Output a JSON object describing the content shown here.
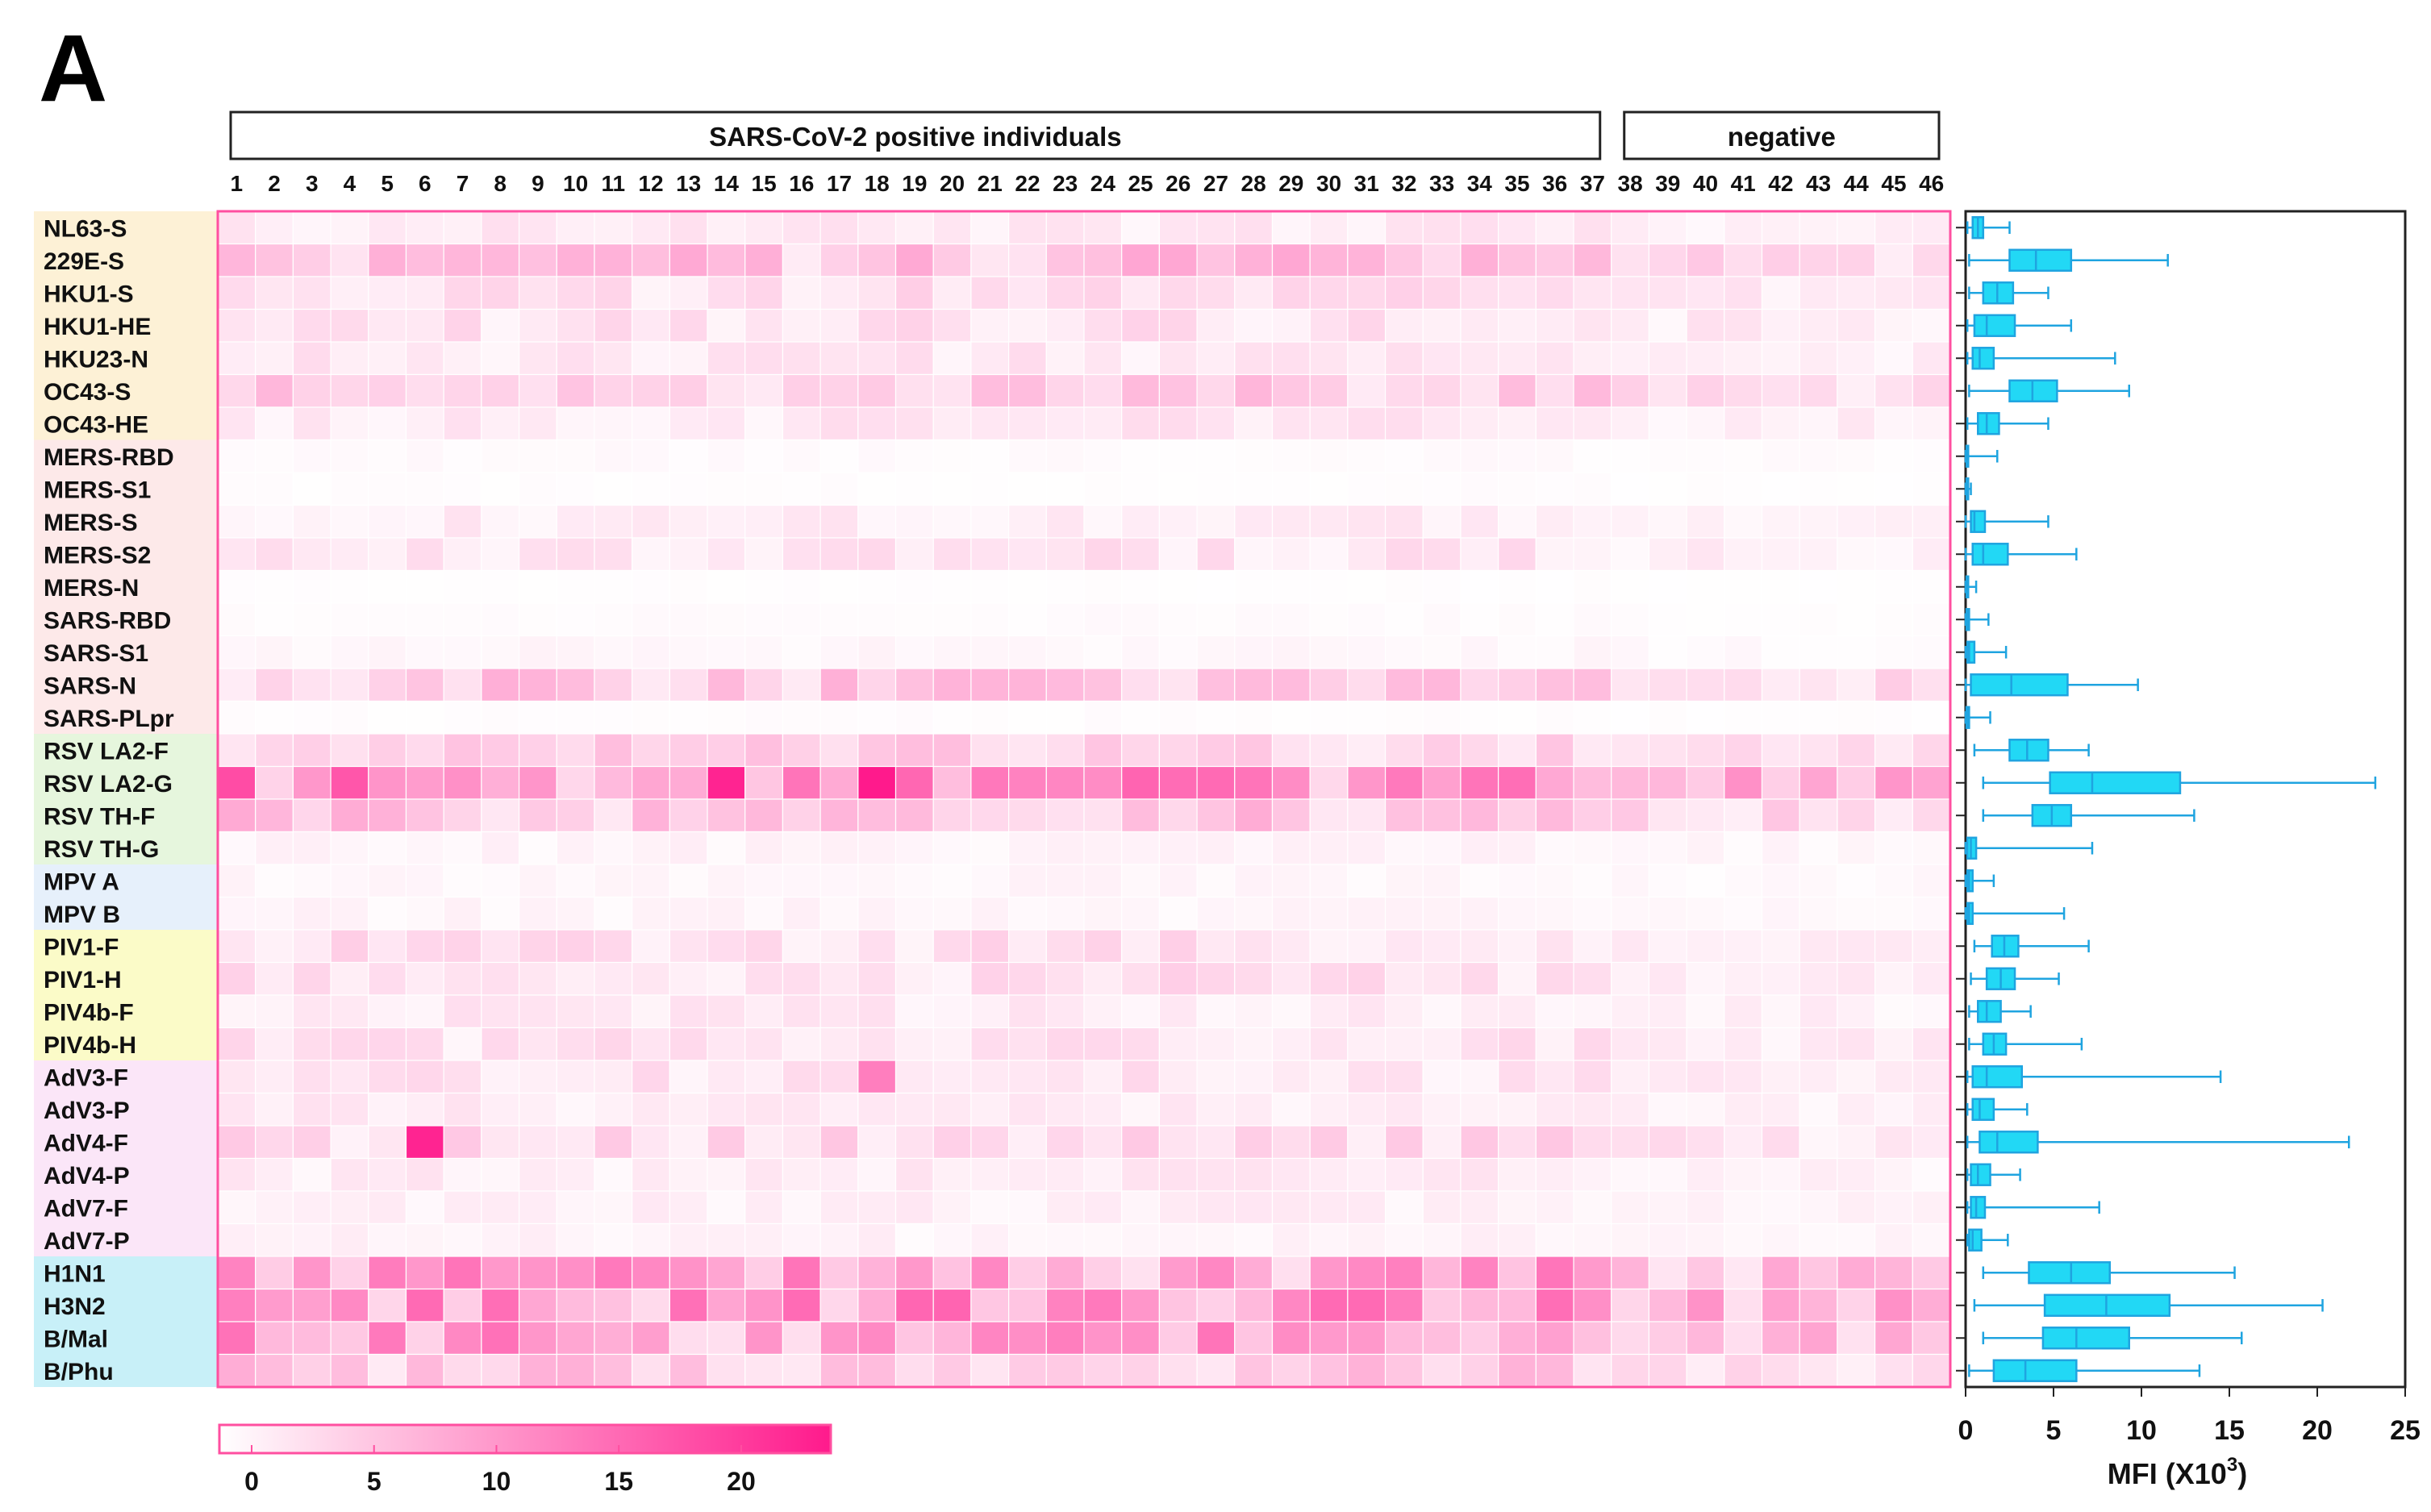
{
  "panel_label": "A",
  "chart_data": [
    {
      "type": "heatmap",
      "group_labels": [
        "SARS-CoV-2 positive individuals",
        "negative"
      ],
      "groups": [
        {
          "label": "SARS-CoV-2 positive individuals",
          "from": 1,
          "to": 37
        },
        {
          "label": "negative",
          "from": 38,
          "to": 46
        }
      ],
      "columns": [
        "1",
        "2",
        "3",
        "4",
        "5",
        "6",
        "7",
        "8",
        "9",
        "10",
        "11",
        "12",
        "13",
        "14",
        "15",
        "16",
        "17",
        "18",
        "19",
        "20",
        "21",
        "22",
        "23",
        "24",
        "25",
        "26",
        "27",
        "28",
        "29",
        "30",
        "31",
        "32",
        "33",
        "34",
        "35",
        "36",
        "37",
        "38",
        "39",
        "40",
        "41",
        "42",
        "43",
        "44",
        "45",
        "46"
      ],
      "rows": [
        {
          "label": "NL63-S",
          "family": "hcov"
        },
        {
          "label": "229E-S",
          "family": "hcov"
        },
        {
          "label": "HKU1-S",
          "family": "hcov"
        },
        {
          "label": "HKU1-HE",
          "family": "hcov"
        },
        {
          "label": "HKU23-N",
          "family": "hcov"
        },
        {
          "label": "OC43-S",
          "family": "hcov"
        },
        {
          "label": "OC43-HE",
          "family": "hcov"
        },
        {
          "label": "MERS-RBD",
          "family": "sars"
        },
        {
          "label": "MERS-S1",
          "family": "sars"
        },
        {
          "label": "MERS-S",
          "family": "sars"
        },
        {
          "label": "MERS-S2",
          "family": "sars"
        },
        {
          "label": "MERS-N",
          "family": "sars"
        },
        {
          "label": "SARS-RBD",
          "family": "sars"
        },
        {
          "label": "SARS-S1",
          "family": "sars"
        },
        {
          "label": "SARS-N",
          "family": "sars"
        },
        {
          "label": "SARS-PLpr",
          "family": "sars"
        },
        {
          "label": "RSV LA2-F",
          "family": "rsv"
        },
        {
          "label": "RSV LA2-G",
          "family": "rsv"
        },
        {
          "label": "RSV TH-F",
          "family": "rsv"
        },
        {
          "label": "RSV TH-G",
          "family": "rsv"
        },
        {
          "label": "MPV A",
          "family": "mpv"
        },
        {
          "label": "MPV B",
          "family": "mpv"
        },
        {
          "label": "PIV1-F",
          "family": "piv"
        },
        {
          "label": "PIV1-H",
          "family": "piv"
        },
        {
          "label": "PIV4b-F",
          "family": "piv"
        },
        {
          "label": "PIV4b-H",
          "family": "piv"
        },
        {
          "label": "AdV3-F",
          "family": "adv"
        },
        {
          "label": "AdV3-P",
          "family": "adv"
        },
        {
          "label": "AdV4-F",
          "family": "adv"
        },
        {
          "label": "AdV4-P",
          "family": "adv"
        },
        {
          "label": "AdV7-F",
          "family": "adv"
        },
        {
          "label": "AdV7-P",
          "family": "adv"
        },
        {
          "label": "H1N1",
          "family": "flu"
        },
        {
          "label": "H3N2",
          "family": "flu"
        },
        {
          "label": "B/Mal",
          "family": "flu"
        },
        {
          "label": "B/Phu",
          "family": "flu"
        }
      ],
      "row_base_values": [
        2.0,
        5.5,
        3.0,
        2.8,
        2.2,
        4.5,
        2.2,
        0.5,
        0.3,
        1.8,
        2.5,
        0.2,
        0.4,
        0.8,
        5.0,
        0.3,
        4.0,
        10.0,
        5.5,
        1.2,
        0.9,
        1.0,
        3.0,
        3.0,
        2.0,
        2.6,
        2.5,
        1.8,
        3.5,
        1.8,
        1.5,
        1.2,
        8.5,
        10.0,
        9.0,
        5.0
      ],
      "notable_cells": [
        {
          "row": "RSV LA2-G",
          "col": "1",
          "value": 18
        },
        {
          "row": "RSV LA2-G",
          "col": "4",
          "value": 17
        },
        {
          "row": "RSV LA2-G",
          "col": "14",
          "value": 22
        },
        {
          "row": "RSV LA2-G",
          "col": "18",
          "value": 23
        },
        {
          "row": "RSV LA2-G",
          "col": "27",
          "value": 15
        },
        {
          "row": "AdV4-F",
          "col": "6",
          "value": 22
        },
        {
          "row": "AdV3-F",
          "col": "18",
          "value": 13
        },
        {
          "row": "H3N2",
          "col": "6",
          "value": 15
        },
        {
          "row": "H3N2",
          "col": "31",
          "value": 15
        },
        {
          "row": "B/Mal",
          "col": "23",
          "value": 13
        }
      ],
      "colorbar": {
        "min": 0,
        "max": 23,
        "ticks": [
          0,
          5,
          10,
          15,
          20
        ],
        "tick_labels": [
          "0",
          "5",
          "10",
          "15",
          "20"
        ],
        "low_color": "#ffffff",
        "high_color": "#ff1a8c"
      },
      "colors": {
        "hcov": "#fdf1d6",
        "sars": "#fde9e9",
        "rsv": "#e6f6dd",
        "mpv": "#e6f0fb",
        "piv": "#fbfbc8",
        "adv": "#fbe6f8",
        "flu": "#c8f0f8",
        "frame": "#ff4fa0"
      }
    },
    {
      "type": "box",
      "orientation": "horizontal",
      "xlabel": "MFI (X10",
      "xlabel_sup": "3",
      "xlabel_close": ")",
      "xlim": [
        0,
        25
      ],
      "xticks": [
        0,
        5,
        10,
        15,
        20,
        25
      ],
      "xtick_labels": [
        "0",
        "5",
        "10",
        "15",
        "20",
        "25"
      ],
      "color": "#22d8f5",
      "edge_color": "#1fa4e0",
      "boxes": [
        {
          "label": "NL63-S",
          "min": 0.1,
          "q1": 0.4,
          "median": 0.7,
          "q3": 1.0,
          "max": 2.5
        },
        {
          "label": "229E-S",
          "min": 0.2,
          "q1": 2.5,
          "median": 4.0,
          "q3": 6.0,
          "max": 11.5
        },
        {
          "label": "HKU1-S",
          "min": 0.2,
          "q1": 1.0,
          "median": 1.8,
          "q3": 2.7,
          "max": 4.7
        },
        {
          "label": "HKU1-HE",
          "min": 0.1,
          "q1": 0.5,
          "median": 1.2,
          "q3": 2.8,
          "max": 6.0
        },
        {
          "label": "HKU23-N",
          "min": 0.1,
          "q1": 0.4,
          "median": 0.8,
          "q3": 1.6,
          "max": 8.5
        },
        {
          "label": "OC43-S",
          "min": 0.2,
          "q1": 2.5,
          "median": 3.8,
          "q3": 5.2,
          "max": 9.3
        },
        {
          "label": "OC43-HE",
          "min": 0.1,
          "q1": 0.7,
          "median": 1.2,
          "q3": 1.9,
          "max": 4.7
        },
        {
          "label": "MERS-RBD",
          "min": 0.0,
          "q1": 0.05,
          "median": 0.1,
          "q3": 0.15,
          "max": 1.8
        },
        {
          "label": "MERS-S1",
          "min": 0.0,
          "q1": 0.05,
          "median": 0.1,
          "q3": 0.15,
          "max": 0.3
        },
        {
          "label": "MERS-S",
          "min": 0.0,
          "q1": 0.3,
          "median": 0.5,
          "q3": 1.1,
          "max": 4.7
        },
        {
          "label": "MERS-S2",
          "min": 0.0,
          "q1": 0.4,
          "median": 1.0,
          "q3": 2.4,
          "max": 6.3
        },
        {
          "label": "MERS-N",
          "min": 0.0,
          "q1": 0.05,
          "median": 0.1,
          "q3": 0.15,
          "max": 0.6
        },
        {
          "label": "SARS-RBD",
          "min": 0.0,
          "q1": 0.05,
          "median": 0.1,
          "q3": 0.2,
          "max": 1.3
        },
        {
          "label": "SARS-S1",
          "min": 0.0,
          "q1": 0.1,
          "median": 0.2,
          "q3": 0.5,
          "max": 2.3
        },
        {
          "label": "SARS-N",
          "min": 0.0,
          "q1": 0.3,
          "median": 2.6,
          "q3": 5.8,
          "max": 9.8
        },
        {
          "label": "SARS-PLpr",
          "min": 0.0,
          "q1": 0.05,
          "median": 0.1,
          "q3": 0.2,
          "max": 1.4
        },
        {
          "label": "RSV LA2-F",
          "min": 0.5,
          "q1": 2.5,
          "median": 3.5,
          "q3": 4.7,
          "max": 7.0
        },
        {
          "label": "RSV LA2-G",
          "min": 1.0,
          "q1": 4.8,
          "median": 7.2,
          "q3": 12.2,
          "max": 23.3
        },
        {
          "label": "RSV TH-F",
          "min": 1.0,
          "q1": 3.8,
          "median": 4.9,
          "q3": 6.0,
          "max": 13.0
        },
        {
          "label": "RSV TH-G",
          "min": 0.0,
          "q1": 0.1,
          "median": 0.3,
          "q3": 0.6,
          "max": 7.2
        },
        {
          "label": "MPV A",
          "min": 0.0,
          "q1": 0.1,
          "median": 0.2,
          "q3": 0.4,
          "max": 1.6
        },
        {
          "label": "MPV B",
          "min": 0.0,
          "q1": 0.1,
          "median": 0.2,
          "q3": 0.4,
          "max": 5.6
        },
        {
          "label": "PIV1-F",
          "min": 0.5,
          "q1": 1.5,
          "median": 2.2,
          "q3": 3.0,
          "max": 7.0
        },
        {
          "label": "PIV1-H",
          "min": 0.3,
          "q1": 1.2,
          "median": 2.0,
          "q3": 2.8,
          "max": 5.3
        },
        {
          "label": "PIV4b-F",
          "min": 0.2,
          "q1": 0.7,
          "median": 1.2,
          "q3": 2.0,
          "max": 3.7
        },
        {
          "label": "PIV4b-H",
          "min": 0.2,
          "q1": 1.0,
          "median": 1.6,
          "q3": 2.3,
          "max": 6.6
        },
        {
          "label": "AdV3-F",
          "min": 0.1,
          "q1": 0.4,
          "median": 1.2,
          "q3": 3.2,
          "max": 14.5
        },
        {
          "label": "AdV3-P",
          "min": 0.1,
          "q1": 0.4,
          "median": 0.8,
          "q3": 1.6,
          "max": 3.5
        },
        {
          "label": "AdV4-F",
          "min": 0.1,
          "q1": 0.8,
          "median": 1.8,
          "q3": 4.1,
          "max": 21.8
        },
        {
          "label": "AdV4-P",
          "min": 0.1,
          "q1": 0.3,
          "median": 0.7,
          "q3": 1.4,
          "max": 3.1
        },
        {
          "label": "AdV7-F",
          "min": 0.1,
          "q1": 0.3,
          "median": 0.6,
          "q3": 1.1,
          "max": 7.6
        },
        {
          "label": "AdV7-P",
          "min": 0.1,
          "q1": 0.2,
          "median": 0.4,
          "q3": 0.9,
          "max": 2.4
        },
        {
          "label": "H1N1",
          "min": 1.0,
          "q1": 3.6,
          "median": 6.0,
          "q3": 8.2,
          "max": 15.3
        },
        {
          "label": "H3N2",
          "min": 0.5,
          "q1": 4.5,
          "median": 8.0,
          "q3": 11.6,
          "max": 20.3
        },
        {
          "label": "B/Mal",
          "min": 1.0,
          "q1": 4.4,
          "median": 6.3,
          "q3": 9.3,
          "max": 15.7
        },
        {
          "label": "B/Phu",
          "min": 0.2,
          "q1": 1.6,
          "median": 3.4,
          "q3": 6.3,
          "max": 13.3
        }
      ]
    }
  ]
}
